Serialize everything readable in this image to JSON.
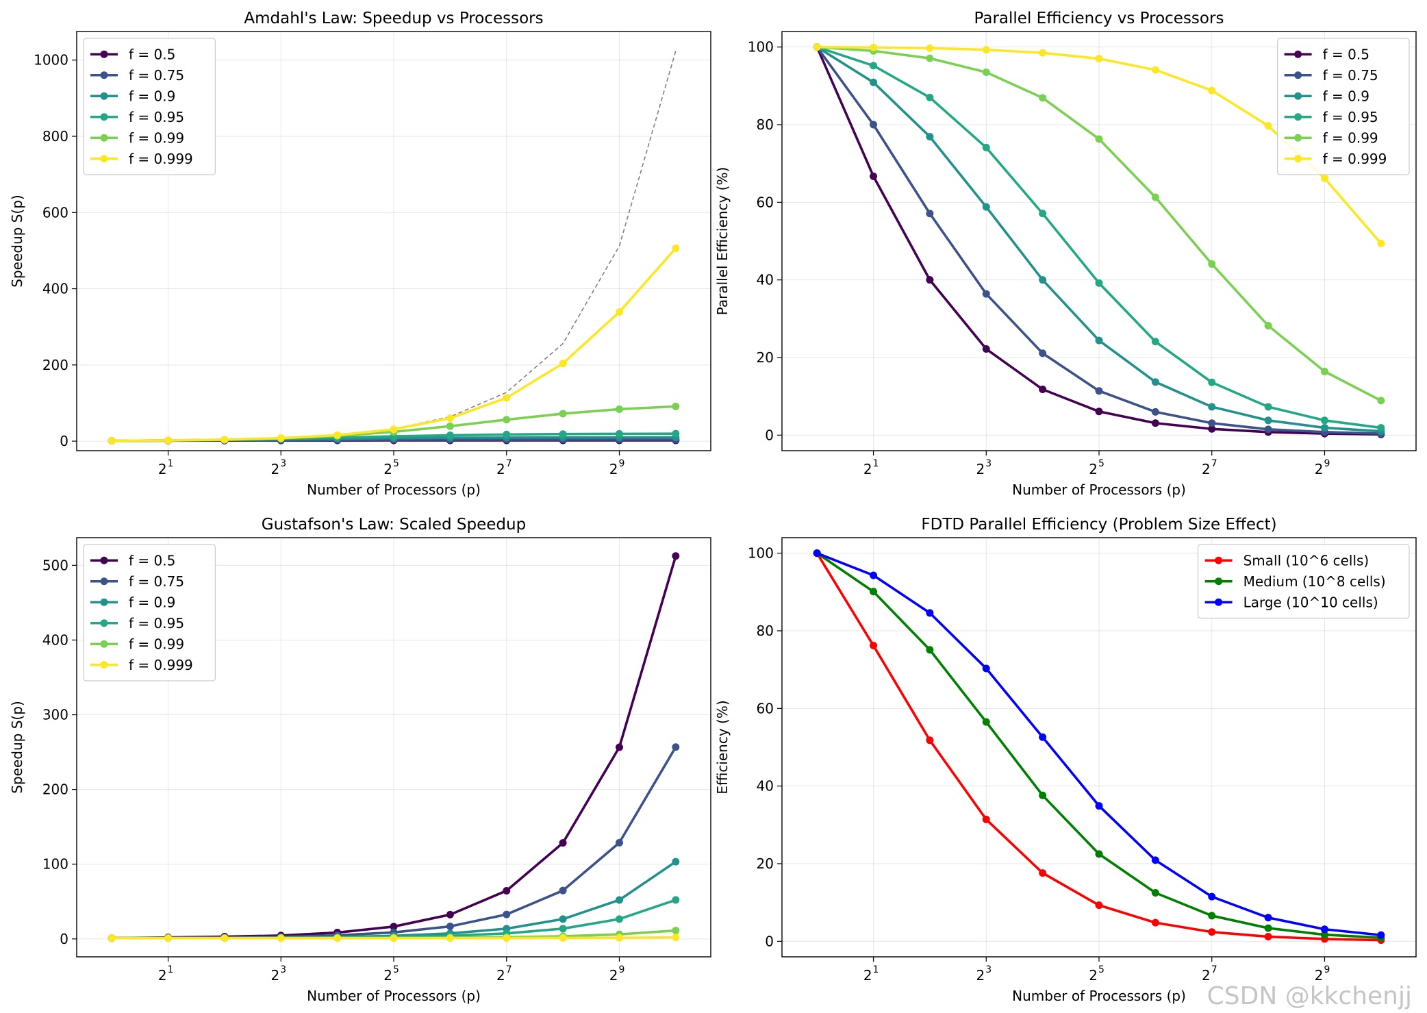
{
  "figure": {
    "watermark": "CSDN @kkchenjj"
  },
  "chart_data": [
    {
      "type": "line",
      "title": "Amdahl's Law: Speedup vs Processors",
      "xlabel": "Number of Processors (p)",
      "ylabel": "Speedup S(p)",
      "xscale": "log2",
      "x": [
        1,
        2,
        4,
        8,
        16,
        32,
        64,
        128,
        256,
        512,
        1024
      ],
      "xticks": [
        2,
        8,
        32,
        128,
        512
      ],
      "xtick_labels": [
        [
          "2",
          "1"
        ],
        [
          "2",
          "3"
        ],
        [
          "2",
          "5"
        ],
        [
          "2",
          "7"
        ],
        [
          "2",
          "9"
        ]
      ],
      "ylim": [
        -25,
        1075
      ],
      "yticks": [
        0,
        200,
        400,
        600,
        800,
        1000
      ],
      "grid": true,
      "legend_loc": "upper-left",
      "ideal_line": {
        "style": "dashed",
        "color": "#808080",
        "values": [
          1,
          2,
          4,
          8,
          16,
          32,
          64,
          128,
          256,
          512,
          1024
        ]
      },
      "series": [
        {
          "name": "f = 0.5",
          "color": "#440154",
          "values": [
            1,
            1.33,
            1.6,
            1.78,
            1.88,
            1.94,
            1.97,
            1.98,
            1.99,
            2.0,
            2.0
          ]
        },
        {
          "name": "f = 0.75",
          "color": "#3b528b",
          "values": [
            1,
            1.6,
            2.29,
            2.91,
            3.37,
            3.66,
            3.82,
            3.91,
            3.95,
            3.98,
            3.99
          ]
        },
        {
          "name": "f = 0.9",
          "color": "#21918c",
          "values": [
            1,
            1.82,
            3.08,
            4.71,
            6.4,
            7.8,
            8.77,
            9.34,
            9.66,
            9.83,
            9.91
          ]
        },
        {
          "name": "f = 0.95",
          "color": "#22a884",
          "values": [
            1,
            1.9,
            3.48,
            5.93,
            9.14,
            12.55,
            15.42,
            17.41,
            18.62,
            19.28,
            19.63
          ]
        },
        {
          "name": "f = 0.99",
          "color": "#7ad151",
          "values": [
            1,
            1.98,
            3.88,
            7.48,
            13.91,
            24.43,
            39.26,
            56.39,
            72.11,
            83.84,
            91.18
          ]
        },
        {
          "name": "f = 0.999",
          "color": "#fde725",
          "values": [
            1,
            2.0,
            3.99,
            7.94,
            15.76,
            31.04,
            60.2,
            113.6,
            203.9,
            338.9,
            506.2
          ]
        }
      ]
    },
    {
      "type": "line",
      "title": "Parallel Efficiency vs Processors",
      "xlabel": "Number of Processors (p)",
      "ylabel": "Parallel Efficiency (%)",
      "xscale": "log2",
      "x": [
        1,
        2,
        4,
        8,
        16,
        32,
        64,
        128,
        256,
        512,
        1024
      ],
      "xticks": [
        2,
        8,
        32,
        128,
        512
      ],
      "xtick_labels": [
        [
          "2",
          "1"
        ],
        [
          "2",
          "3"
        ],
        [
          "2",
          "5"
        ],
        [
          "2",
          "7"
        ],
        [
          "2",
          "9"
        ]
      ],
      "ylim": [
        -4,
        104
      ],
      "yticks": [
        0,
        20,
        40,
        60,
        80,
        100
      ],
      "grid": true,
      "legend_loc": "upper-right",
      "series": [
        {
          "name": "f = 0.5",
          "color": "#440154",
          "values": [
            100,
            66.7,
            40.0,
            22.2,
            11.8,
            6.1,
            3.1,
            1.6,
            0.8,
            0.4,
            0.2
          ]
        },
        {
          "name": "f = 0.75",
          "color": "#3b528b",
          "values": [
            100,
            80.0,
            57.1,
            36.4,
            21.1,
            11.4,
            6.0,
            3.1,
            1.5,
            0.8,
            0.4
          ]
        },
        {
          "name": "f = 0.9",
          "color": "#21918c",
          "values": [
            100,
            90.9,
            76.9,
            58.8,
            40.0,
            24.4,
            13.7,
            7.3,
            3.8,
            1.9,
            1.0
          ]
        },
        {
          "name": "f = 0.95",
          "color": "#22a884",
          "values": [
            100,
            95.2,
            87.0,
            74.1,
            57.1,
            39.2,
            24.1,
            13.6,
            7.3,
            3.8,
            1.9
          ]
        },
        {
          "name": "f = 0.99",
          "color": "#7ad151",
          "values": [
            100,
            99.0,
            97.1,
            93.5,
            86.9,
            76.3,
            61.3,
            44.1,
            28.2,
            16.4,
            8.9
          ]
        },
        {
          "name": "f = 0.999",
          "color": "#fde725",
          "values": [
            100,
            99.9,
            99.7,
            99.3,
            98.5,
            97.0,
            94.1,
            88.8,
            79.7,
            66.2,
            49.4
          ]
        }
      ]
    },
    {
      "type": "line",
      "title": "Gustafson's Law: Scaled Speedup",
      "xlabel": "Number of Processors (p)",
      "ylabel": "Speedup S(p)",
      "xscale": "log2",
      "x": [
        1,
        2,
        4,
        8,
        16,
        32,
        64,
        128,
        256,
        512,
        1024
      ],
      "xticks": [
        2,
        8,
        32,
        128,
        512
      ],
      "xtick_labels": [
        [
          "2",
          "1"
        ],
        [
          "2",
          "3"
        ],
        [
          "2",
          "5"
        ],
        [
          "2",
          "7"
        ],
        [
          "2",
          "9"
        ]
      ],
      "ylim": [
        -24,
        537
      ],
      "yticks": [
        0,
        100,
        200,
        300,
        400,
        500
      ],
      "grid": true,
      "legend_loc": "upper-left",
      "series": [
        {
          "name": "f = 0.5",
          "color": "#440154",
          "values": [
            1,
            2,
            3,
            4.5,
            8.5,
            16.5,
            32.5,
            64.5,
            128.5,
            256.5,
            512.5
          ]
        },
        {
          "name": "f = 0.75",
          "color": "#3b528b",
          "values": [
            1,
            1.5,
            1.75,
            2.75,
            4.75,
            8.75,
            16.75,
            32.75,
            64.75,
            128.75,
            256.75
          ]
        },
        {
          "name": "f = 0.9",
          "color": "#21918c",
          "values": [
            1,
            1.2,
            1.3,
            1.7,
            2.5,
            4.1,
            7.3,
            13.7,
            26.5,
            52.1,
            103.3
          ]
        },
        {
          "name": "f = 0.95",
          "color": "#22a884",
          "values": [
            1,
            1.1,
            1.15,
            1.35,
            1.75,
            2.55,
            4.15,
            7.35,
            13.75,
            26.55,
            52.15
          ]
        },
        {
          "name": "f = 0.99",
          "color": "#7ad151",
          "values": [
            1,
            1.02,
            1.03,
            1.07,
            1.15,
            1.31,
            1.63,
            2.27,
            3.55,
            6.11,
            11.23
          ]
        },
        {
          "name": "f = 0.999",
          "color": "#fde725",
          "values": [
            1,
            1.0,
            1.0,
            1.0,
            1.0,
            1.0,
            1.1,
            1.1,
            1.3,
            1.5,
            2.0
          ]
        }
      ]
    },
    {
      "type": "line",
      "title": "FDTD Parallel Efficiency (Problem Size Effect)",
      "xlabel": "Number of Processors (p)",
      "ylabel": "Efficiency (%)",
      "xscale": "log2",
      "x": [
        1,
        2,
        4,
        8,
        16,
        32,
        64,
        128,
        256,
        512,
        1024
      ],
      "xticks": [
        2,
        8,
        32,
        128,
        512
      ],
      "xtick_labels": [
        [
          "2",
          "1"
        ],
        [
          "2",
          "3"
        ],
        [
          "2",
          "5"
        ],
        [
          "2",
          "7"
        ],
        [
          "2",
          "9"
        ]
      ],
      "ylim": [
        -4,
        104
      ],
      "yticks": [
        0,
        20,
        40,
        60,
        80,
        100
      ],
      "grid": true,
      "legend_loc": "upper-right",
      "series": [
        {
          "name": "Small (10^6 cells)",
          "color": "#ff0000",
          "values": [
            100,
            76.2,
            51.8,
            31.4,
            17.6,
            9.3,
            4.8,
            2.4,
            1.2,
            0.6,
            0.3
          ]
        },
        {
          "name": "Medium (10^8 cells)",
          "color": "#008000",
          "values": [
            100,
            90.1,
            75.1,
            56.5,
            37.6,
            22.5,
            12.5,
            6.6,
            3.4,
            1.7,
            0.9
          ]
        },
        {
          "name": "Large (10^10 cells)",
          "color": "#0000ff",
          "values": [
            100,
            94.3,
            84.6,
            70.3,
            52.6,
            34.9,
            20.9,
            11.5,
            6.1,
            3.1,
            1.6
          ]
        }
      ]
    }
  ]
}
